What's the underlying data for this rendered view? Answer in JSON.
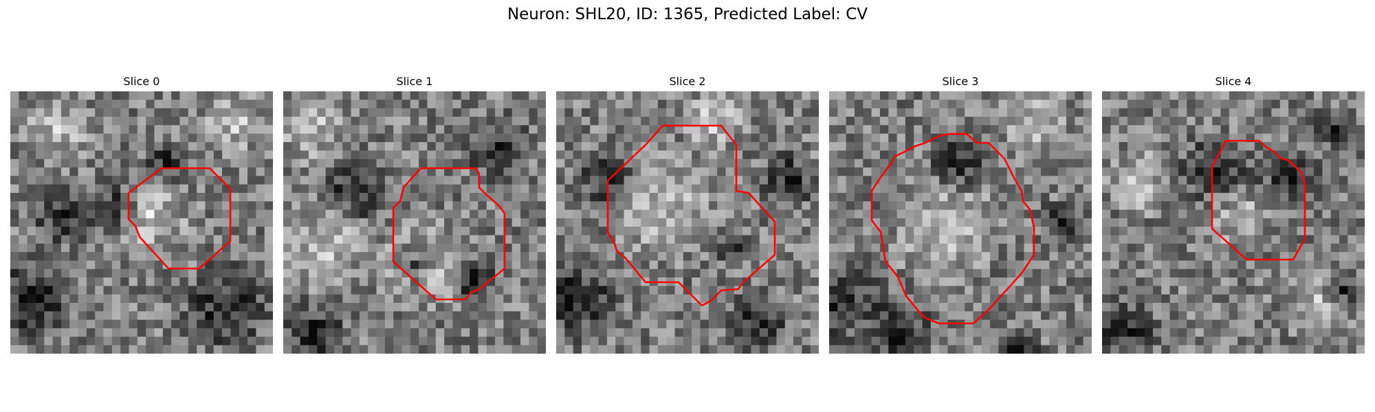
{
  "figure": {
    "title": "Neuron: SHL20, ID: 1365, Predicted Label: CV",
    "contour_color": "#ff0000"
  },
  "panels": [
    {
      "title": "Slice 0"
    },
    {
      "title": "Slice 1"
    },
    {
      "title": "Slice 2"
    },
    {
      "title": "Slice 3"
    },
    {
      "title": "Slice 4"
    }
  ]
}
